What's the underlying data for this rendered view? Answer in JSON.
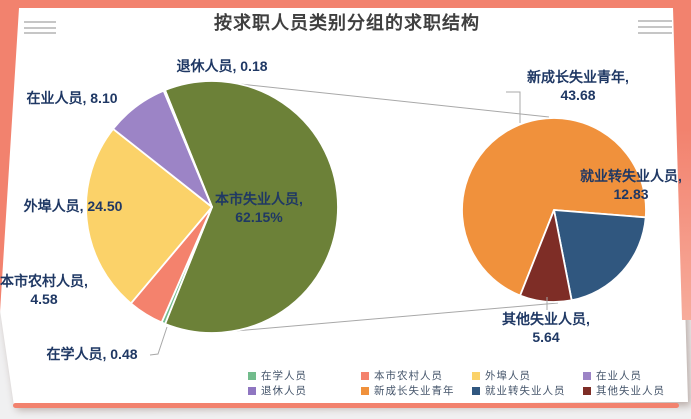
{
  "title": {
    "text": "按求职人员类别分组的求职结构"
  },
  "theme": {
    "accent": "#F2826E",
    "card_bg": "#FFFFFF",
    "page_bg": "#F0F0F1",
    "title_color": "#3F3F3F",
    "label_color": "#1F3864",
    "legend_text_color": "#44546A",
    "connector_color": "#A8A8A8"
  },
  "menu_icons": {
    "left": "hamburger-menu",
    "right": "hamburger-menu"
  },
  "chart_data": {
    "type": "pie",
    "subtype": "pie-of-pie",
    "title": "按求职人员类别分组的求职结构",
    "values_are": "percent",
    "legend_position": "bottom",
    "primary_pie": {
      "center": [
        212,
        207
      ],
      "radius": 126,
      "start_angle_deg": 338.1,
      "slices": [
        {
          "name": "本市失业人员",
          "value": 62.15,
          "color": "#6C8138"
        },
        {
          "name": "在学人员",
          "value": 0.48,
          "color": "#72BC8C"
        },
        {
          "name": "本市农村人员",
          "value": 4.58,
          "color": "#F4826D"
        },
        {
          "name": "外埠人员",
          "value": 24.5,
          "color": "#FBD269"
        },
        {
          "name": "在业人员",
          "value": 8.1,
          "color": "#9C84C6"
        },
        {
          "name": "退休人员",
          "value": 0.18,
          "color": "#8F76C1"
        }
      ]
    },
    "secondary_pie": {
      "center": [
        554,
        210
      ],
      "radius": 92,
      "start_angle_deg": 201.6,
      "slices": [
        {
          "name": "新成长失业青年",
          "value": 43.68,
          "color": "#F0913C"
        },
        {
          "name": "就业转失业人员",
          "value": 12.83,
          "color": "#30577F"
        },
        {
          "name": "其他失业人员",
          "value": 5.64,
          "color": "#7E2D26"
        }
      ]
    }
  },
  "callouts": {
    "retired": [
      "退休人员, 0.18"
    ],
    "employed": [
      "在业人员, 8.10"
    ],
    "nonlocal": [
      "外埠人员, 24.50"
    ],
    "rural": [
      "本市农村人员,",
      "4.58"
    ],
    "student": [
      "在学人员, 0.48"
    ],
    "main_unemployed": [
      "本市失业人员,",
      "62.15%"
    ],
    "new_youth": [
      "新成长失业青年,",
      "43.68"
    ],
    "job_to_unemployed": [
      "就业转失业人员,",
      "12.83"
    ],
    "other_unemployed": [
      "其他失业人员,",
      "5.64"
    ]
  },
  "legend": {
    "items": [
      {
        "label": "在学人员",
        "color": "#72BC8C"
      },
      {
        "label": "本市农村人员",
        "color": "#F4826D"
      },
      {
        "label": "外埠人员",
        "color": "#FBD269"
      },
      {
        "label": "在业人员",
        "color": "#9C84C6"
      },
      {
        "label": "退休人员",
        "color": "#8F76C1"
      },
      {
        "label": "新成长失业青年",
        "color": "#F0913C"
      },
      {
        "label": "就业转失业人员",
        "color": "#30577F"
      },
      {
        "label": "其他失业人员",
        "color": "#7E2D26"
      }
    ]
  }
}
